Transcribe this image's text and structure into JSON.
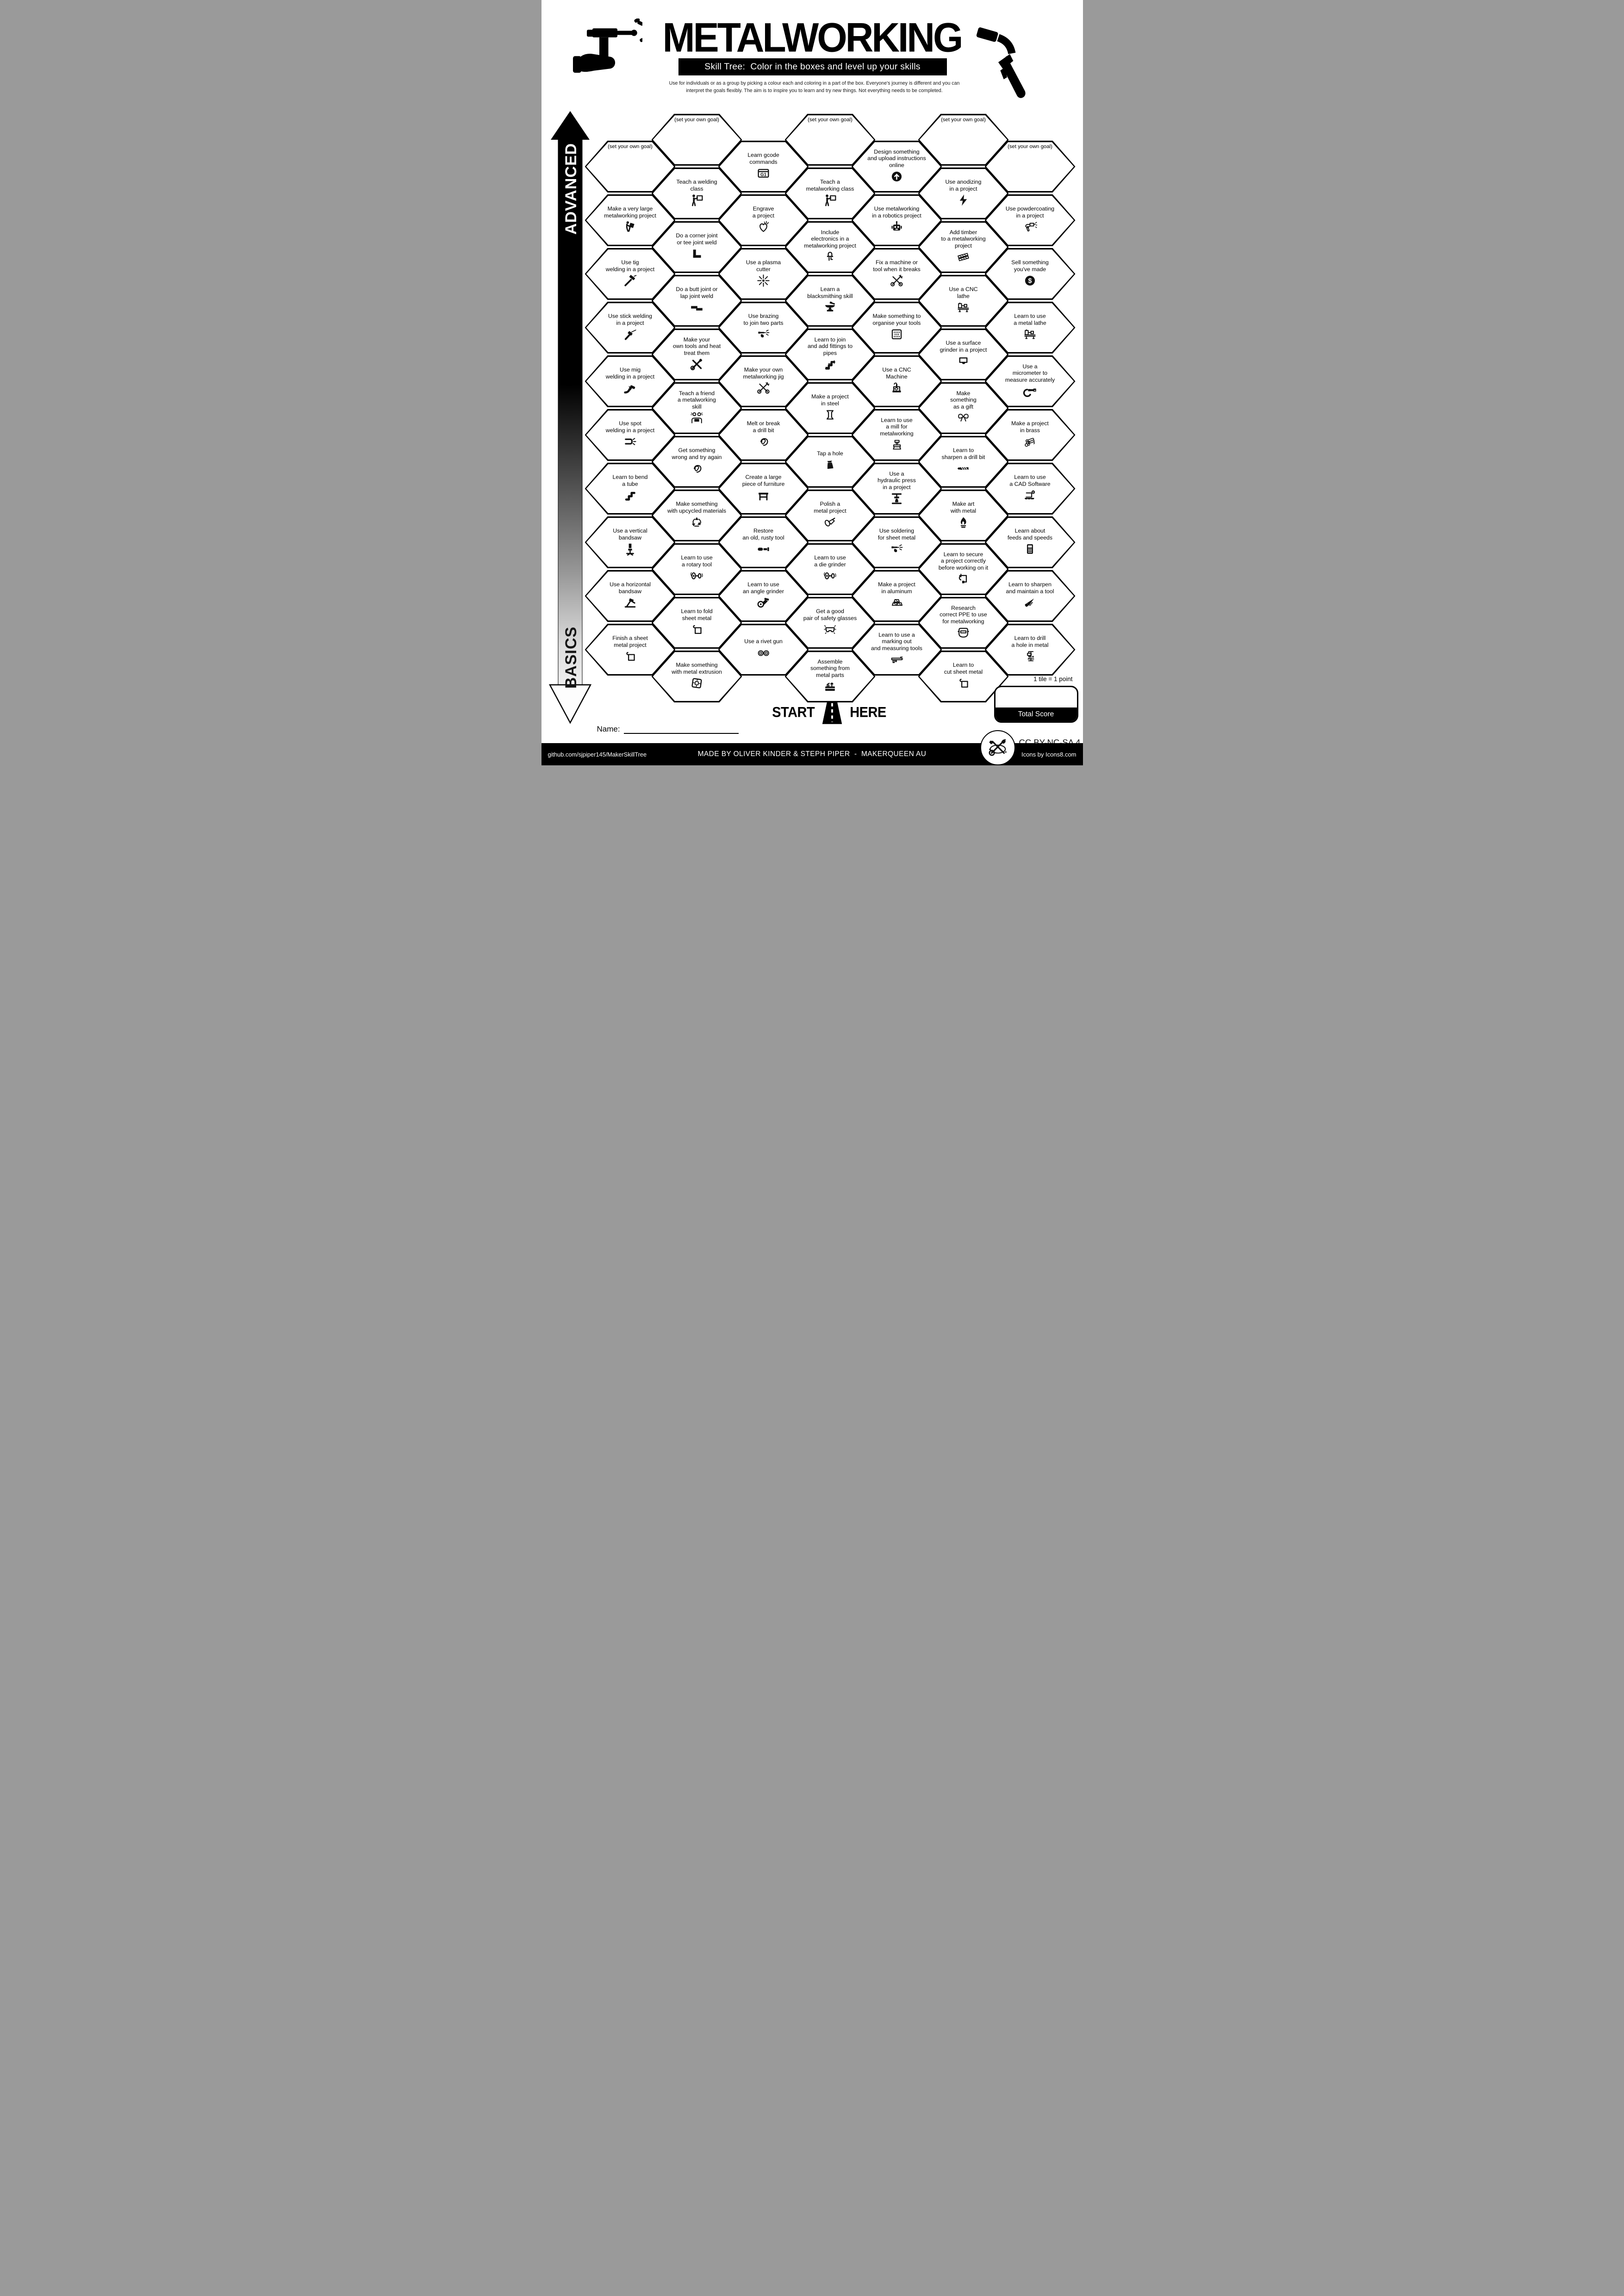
{
  "title": "METALWORKING",
  "subtitle": "Skill Tree:  Color in the boxes and level up your skills",
  "intro": {
    "line1": "Use for individuals or as a group by picking a colour each and coloring in a part of the box.  Everyone's journey is different and you can",
    "line2": "interpret the goals flexibly.  The aim is to inspire you to learn and try new things. Not everything needs to be completed."
  },
  "axis": {
    "advanced": "ADVANCED",
    "basics": "BASICS"
  },
  "start_here": {
    "start": "START",
    "here": "HERE"
  },
  "name_label": "Name:",
  "scoring": {
    "tile_note": "1 tile = 1 point",
    "total_score_label": "Total Score"
  },
  "license": "CC BY-NC-SA 4.0",
  "footer": {
    "left": "github.com/sjpiper145/MakerSkillTree",
    "center": "MADE BY OLIVER KINDER & STEPH PIPER  -  MAKERQUEEN AU",
    "right": "Icons by Icons8.com"
  },
  "colors": {
    "ink": "#000000",
    "paper": "#ffffff"
  },
  "grid": {
    "columns": [
      {
        "cells": [
          {
            "label": "(set your own goal)",
            "icon": "none",
            "goal": true
          },
          {
            "label": "Make a very large\nmetalworking project",
            "icon": "carry-person"
          },
          {
            "label": "Use tig\nwelding in a project",
            "icon": "tig-torch"
          },
          {
            "label": "Use stick welding\nin a project",
            "icon": "stick-electrode"
          },
          {
            "label": "Use mig\nwelding in a project",
            "icon": "mig-torch"
          },
          {
            "label": "Use spot\nwelding in a project",
            "icon": "spot-weld"
          },
          {
            "label": "Learn to bend\na tube",
            "icon": "bent-tube"
          },
          {
            "label": "Use a vertical\nbandsaw",
            "icon": "vertical-bandsaw"
          },
          {
            "label": "Use a horizontal\nbandsaw",
            "icon": "horizontal-bandsaw"
          },
          {
            "label": "Finish a sheet\nmetal project",
            "icon": "sheet-metal"
          }
        ]
      },
      {
        "cells": [
          {
            "label": "(set your own goal)",
            "icon": "none",
            "goal": true
          },
          {
            "label": "Teach a welding\nclass",
            "icon": "teacher-board"
          },
          {
            "label": "Do a corner joint\nor tee joint weld",
            "icon": "corner-joint"
          },
          {
            "label": "Do a butt joint or\nlap joint weld",
            "icon": "lap-joint"
          },
          {
            "label": "Make your\nown tools and heat\ntreat them",
            "icon": "crossed-tools"
          },
          {
            "label": "Teach a friend\na metalworking\nskill",
            "icon": "two-friends"
          },
          {
            "label": "Get something\nwrong and try again",
            "icon": "facepalm"
          },
          {
            "label": "Make something\nwith upcycled materials",
            "icon": "recycle"
          },
          {
            "label": "Learn to use\na rotary tool",
            "icon": "rotary-tool"
          },
          {
            "label": "Learn to fold\nsheet metal",
            "icon": "sheet-metal"
          },
          {
            "label": "Make something\nwith metal extrusion",
            "icon": "extrusion"
          }
        ]
      },
      {
        "cells": [
          {
            "label": "Learn gcode\ncommands",
            "icon": "gcode"
          },
          {
            "label": "Engrave\na project",
            "icon": "engraved-heart"
          },
          {
            "label": "Use a plasma\ncutter",
            "icon": "plasma-spark"
          },
          {
            "label": "Use brazing\nto join two parts",
            "icon": "brazing"
          },
          {
            "label": "Make your own\nmetalworking jig",
            "icon": "crossed-tools-outline"
          },
          {
            "label": "Melt or break\na drill bit",
            "icon": "facepalm"
          },
          {
            "label": "Create a large\npiece of furniture",
            "icon": "furniture"
          },
          {
            "label": "Restore\nan old, rusty tool",
            "icon": "rusty-tool"
          },
          {
            "label": "Learn to use\nan angle grinder",
            "icon": "angle-grinder"
          },
          {
            "label": "Use a rivet gun",
            "icon": "rivets"
          }
        ]
      },
      {
        "cells": [
          {
            "label": "(set your own goal)",
            "icon": "none",
            "goal": true
          },
          {
            "label": "Teach a\nmetalworking class",
            "icon": "teacher-board"
          },
          {
            "label": "Include\nelectronics in a\nmetalworking project",
            "icon": "led"
          },
          {
            "label": "Learn a\nblacksmithing skill",
            "icon": "anvil"
          },
          {
            "label": "Learn to join\nand add fittings to\npipes",
            "icon": "pipe-fittings"
          },
          {
            "label": "Make a project\nin steel",
            "icon": "i-beam"
          },
          {
            "label": "Tap a hole",
            "icon": "thread-tap"
          },
          {
            "label": "Polish a\nmetal project",
            "icon": "polisher"
          },
          {
            "label": "Learn to use\na die grinder",
            "icon": "rotary-tool"
          },
          {
            "label": "Get a good\npair of safety glasses",
            "icon": "safety-glasses"
          },
          {
            "label": "Assemble\nsomething from\nmetal parts",
            "icon": "toolbox"
          }
        ]
      },
      {
        "cells": [
          {
            "label": "Design something\nand upload instructions\nonline",
            "icon": "upload"
          },
          {
            "label": "Use metalworking\nin a robotics project",
            "icon": "robot"
          },
          {
            "label": "Fix a machine or\ntool when it breaks",
            "icon": "crossed-tools-outline"
          },
          {
            "label": "Make something to\norganise your tools",
            "icon": "pegboard"
          },
          {
            "label": "Use a CNC\nMachine",
            "icon": "cnc-machine"
          },
          {
            "label": "Learn to use\na mill for\nmetalworking",
            "icon": "mill"
          },
          {
            "label": "Use a\nhydraulic press\nin a project",
            "icon": "hydraulic-press"
          },
          {
            "label": "Use soldering\nfor sheet metal",
            "icon": "brazing"
          },
          {
            "label": "Make a project\nin aluminum",
            "icon": "ingots"
          },
          {
            "label": "Learn to use a\nmarking out\nand measuring tools",
            "icon": "caliper"
          }
        ]
      },
      {
        "cells": [
          {
            "label": "(set your own goal)",
            "icon": "none",
            "goal": true
          },
          {
            "label": "Use anodizing\nin a project",
            "icon": "lightning-bolt"
          },
          {
            "label": "Add timber\nto a metalworking\nproject",
            "icon": "timber"
          },
          {
            "label": "Use a CNC\nlathe",
            "icon": "lathe"
          },
          {
            "label": "Use a surface\ngrinder in a project",
            "icon": "surface-grinder"
          },
          {
            "label": "Make\nsomething\nas a gift",
            "icon": "gift-bow"
          },
          {
            "label": "Learn to\nsharpen a drill bit",
            "icon": "drill-bit"
          },
          {
            "label": "Make art\nwith metal",
            "icon": "metal-flame"
          },
          {
            "label": "Learn to secure\na project correctly\nbefore working on it",
            "icon": "c-clamp"
          },
          {
            "label": "Research\ncorrect PPE to use\nfor metalworking",
            "icon": "welding-helmet"
          },
          {
            "label": "Learn to\ncut sheet metal",
            "icon": "sheet-metal"
          }
        ]
      },
      {
        "cells": [
          {
            "label": "(set your own goal)",
            "icon": "none",
            "goal": true
          },
          {
            "label": "Use powdercoating\nin a project",
            "icon": "spray-gun"
          },
          {
            "label": "Sell something\nyou've made",
            "icon": "dollar"
          },
          {
            "label": "Learn to use\na metal lathe",
            "icon": "lathe"
          },
          {
            "label": "Use a\nmicrometer to\nmeasure accurately",
            "icon": "micrometer"
          },
          {
            "label": "Make a project\nin brass",
            "icon": "brass-rods"
          },
          {
            "label": "Learn to use\na CAD Software",
            "icon": "cad-laptop"
          },
          {
            "label": "Learn about\nfeeds and speeds",
            "icon": "calculator"
          },
          {
            "label": "Learn to sharpen\nand maintain a tool",
            "icon": "handsaw"
          },
          {
            "label": "Learn to drill\na hole in metal",
            "icon": "drill-press"
          }
        ]
      }
    ]
  }
}
